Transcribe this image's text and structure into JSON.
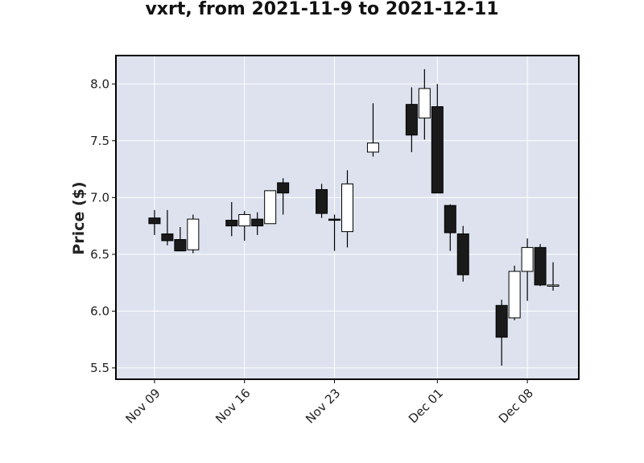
{
  "chart_data": {
    "type": "candlestick",
    "title": "vxrt, from 2021-11-9 to 2021-12-11",
    "xlabel": "",
    "ylabel": "Price ($)",
    "ylim": [
      5.4,
      8.25
    ],
    "yticks": [
      5.5,
      6.0,
      6.5,
      7.0,
      7.5,
      8.0
    ],
    "ytick_labels": [
      "5.5",
      "6.0",
      "6.5",
      "7.0",
      "7.5",
      "8.0"
    ],
    "xlim": [
      "2021-11-06",
      "2021-12-12"
    ],
    "xticks": [
      "2021-11-09",
      "2021-11-16",
      "2021-11-23",
      "2021-12-01",
      "2021-12-08"
    ],
    "xtick_labels": [
      "Nov 09",
      "Nov 16",
      "Nov 23",
      "Dec 01",
      "Dec 08"
    ],
    "grid": true,
    "colors": {
      "background": "#dde2ee",
      "up": "#ffffff",
      "down": "#1a1a1a",
      "grid": "#ffffff",
      "edge": "#000000"
    },
    "candles": [
      {
        "date": "2021-11-09",
        "open": 6.82,
        "high": 6.89,
        "low": 6.67,
        "close": 6.77
      },
      {
        "date": "2021-11-10",
        "open": 6.68,
        "high": 6.89,
        "low": 6.58,
        "close": 6.62
      },
      {
        "date": "2021-11-11",
        "open": 6.63,
        "high": 6.74,
        "low": 6.53,
        "close": 6.53
      },
      {
        "date": "2021-11-12",
        "open": 6.54,
        "high": 6.85,
        "low": 6.51,
        "close": 6.81
      },
      {
        "date": "2021-11-15",
        "open": 6.8,
        "high": 6.96,
        "low": 6.66,
        "close": 6.75
      },
      {
        "date": "2021-11-16",
        "open": 6.75,
        "high": 6.88,
        "low": 6.62,
        "close": 6.85
      },
      {
        "date": "2021-11-17",
        "open": 6.81,
        "high": 6.87,
        "low": 6.67,
        "close": 6.75
      },
      {
        "date": "2021-11-18",
        "open": 6.77,
        "high": 7.06,
        "low": 6.77,
        "close": 7.06
      },
      {
        "date": "2021-11-19",
        "open": 7.13,
        "high": 7.17,
        "low": 6.85,
        "close": 7.04
      },
      {
        "date": "2021-11-22",
        "open": 7.07,
        "high": 7.12,
        "low": 6.82,
        "close": 6.86
      },
      {
        "date": "2021-11-23",
        "open": 6.81,
        "high": 6.85,
        "low": 6.53,
        "close": 6.8
      },
      {
        "date": "2021-11-24",
        "open": 6.7,
        "high": 7.24,
        "low": 6.56,
        "close": 7.12
      },
      {
        "date": "2021-11-26",
        "open": 7.4,
        "high": 7.83,
        "low": 7.36,
        "close": 7.48
      },
      {
        "date": "2021-11-29",
        "open": 7.82,
        "high": 7.97,
        "low": 7.4,
        "close": 7.55
      },
      {
        "date": "2021-11-30",
        "open": 7.7,
        "high": 8.13,
        "low": 7.51,
        "close": 7.96
      },
      {
        "date": "2021-12-01",
        "open": 7.8,
        "high": 8.0,
        "low": 7.04,
        "close": 7.04
      },
      {
        "date": "2021-12-02",
        "open": 6.93,
        "high": 6.94,
        "low": 6.53,
        "close": 6.69
      },
      {
        "date": "2021-12-03",
        "open": 6.68,
        "high": 6.75,
        "low": 6.26,
        "close": 6.32
      },
      {
        "date": "2021-12-06",
        "open": 6.05,
        "high": 6.1,
        "low": 5.52,
        "close": 5.77
      },
      {
        "date": "2021-12-07",
        "open": 5.94,
        "high": 6.4,
        "low": 5.92,
        "close": 6.35
      },
      {
        "date": "2021-12-08",
        "open": 6.35,
        "high": 6.64,
        "low": 6.09,
        "close": 6.56
      },
      {
        "date": "2021-12-09",
        "open": 6.56,
        "high": 6.59,
        "low": 6.22,
        "close": 6.23
      },
      {
        "date": "2021-12-10",
        "open": 6.22,
        "high": 6.43,
        "low": 6.18,
        "close": 6.23
      }
    ]
  }
}
